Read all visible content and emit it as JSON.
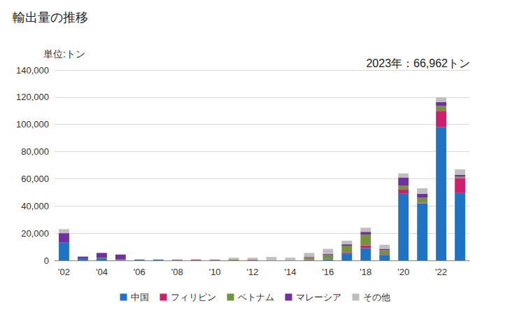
{
  "chart_data": {
    "type": "bar",
    "title": "輸出量の推移",
    "ylabel": "単位:トン",
    "annotations": [
      "2023年：66,962トン"
    ],
    "stacked": true,
    "grid": true,
    "legend": "bottom",
    "categories": [
      "'02",
      null,
      "'04",
      null,
      "'06",
      null,
      "'08",
      null,
      "'10",
      null,
      "'12",
      null,
      "'14",
      null,
      "'16",
      null,
      "'18",
      null,
      "'20",
      null,
      "'22",
      null
    ],
    "ylim": [
      0,
      140000
    ],
    "yticks": [
      0,
      {
        "value": 20000,
        "label": "20,000"
      },
      {
        "value": 40000,
        "label": "40,000"
      },
      {
        "value": 60000,
        "label": "60,000"
      },
      {
        "value": 80000,
        "label": "80,000"
      },
      {
        "value": 100000,
        "label": "100,000"
      },
      {
        "value": 120000,
        "label": "120,000"
      },
      {
        "value": 140000,
        "label": "140,000"
      }
    ],
    "series": [
      {
        "name": "中国",
        "color": "#1f73c4",
        "values": [
          13000,
          1500,
          1500,
          300,
          600,
          600,
          0,
          0,
          0,
          0,
          0,
          0,
          0,
          300,
          800,
          5000,
          9000,
          4000,
          49000,
          42000,
          98000,
          49500
        ]
      },
      {
        "name": "フィリピン",
        "color": "#d01f6a",
        "values": [
          0,
          0,
          0,
          0,
          0,
          0,
          0,
          400,
          0,
          0,
          400,
          0,
          0,
          500,
          0,
          800,
          2000,
          500,
          3000,
          500,
          12000,
          11000
        ]
      },
      {
        "name": "ベトナム",
        "color": "#76923c",
        "values": [
          0,
          0,
          500,
          300,
          0,
          0,
          0,
          0,
          0,
          500,
          300,
          200,
          0,
          1500,
          3000,
          5000,
          8000,
          3000,
          3000,
          3500,
          3500,
          1000
        ]
      },
      {
        "name": "マレーシア",
        "color": "#7030a0",
        "values": [
          7000,
          1300,
          3500,
          3700,
          0,
          0,
          400,
          200,
          400,
          0,
          0,
          0,
          0,
          500,
          800,
          1000,
          2000,
          1000,
          6000,
          3000,
          3000,
          1500
        ]
      },
      {
        "name": "その他",
        "color": "#bfbfbf",
        "values": [
          3000,
          200,
          0,
          200,
          200,
          200,
          400,
          200,
          400,
          1500,
          1300,
          2300,
          2000,
          2700,
          3900,
          2700,
          3000,
          3000,
          3000,
          4000,
          3500,
          3962
        ]
      }
    ]
  }
}
